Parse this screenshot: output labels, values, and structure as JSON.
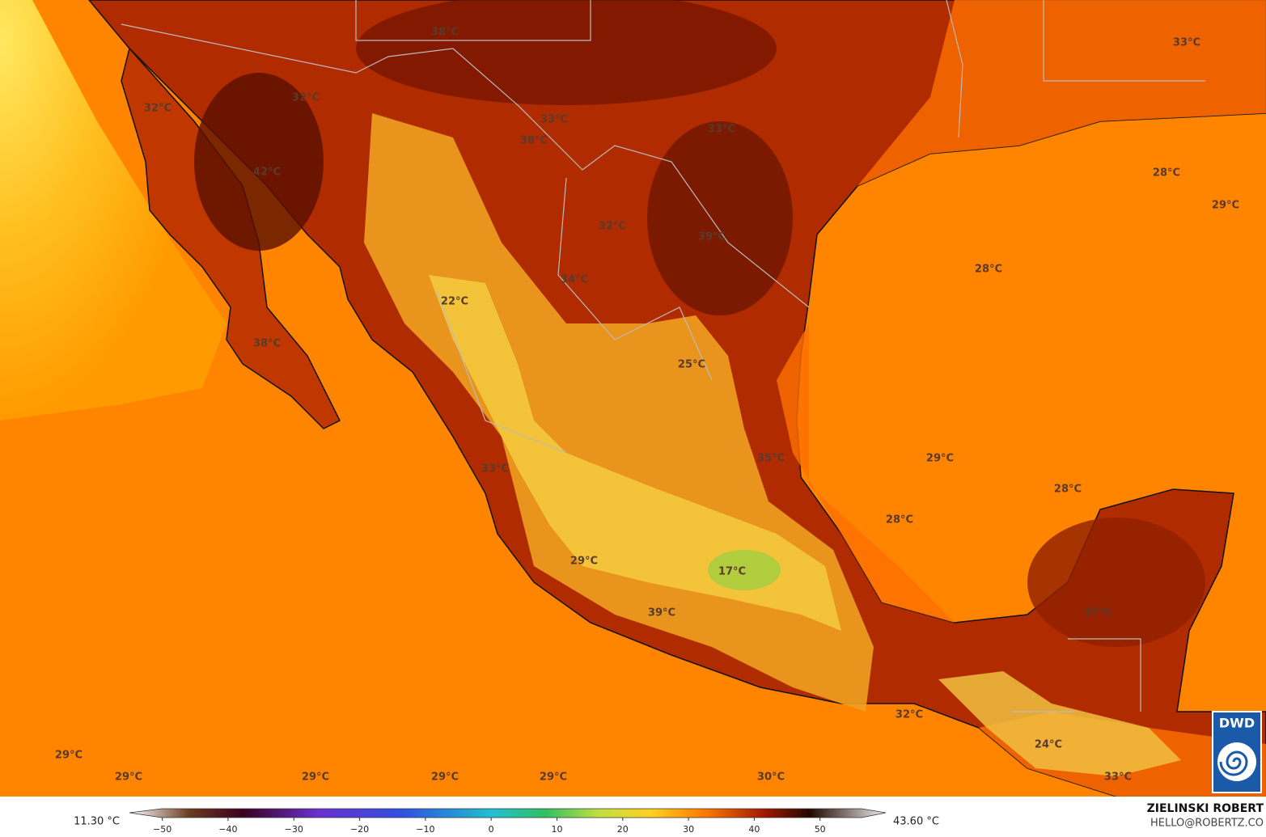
{
  "map": {
    "labels": [
      "38°C",
      "33°C",
      "32°C",
      "32°C",
      "33°C",
      "33°C",
      "38°C",
      "42°C",
      "28°C",
      "29°C",
      "32°C",
      "39°C",
      "28°C",
      "34°C",
      "22°C",
      "38°C",
      "25°C",
      "35°C",
      "29°C",
      "33°C",
      "28°C",
      "28°C",
      "29°C",
      "17°C",
      "37°C",
      "39°C",
      "32°C",
      "24°C",
      "29°C",
      "29°C",
      "29°C",
      "29°C",
      "29°C",
      "30°C",
      "33°C"
    ]
  },
  "colorbar": {
    "min_label": "11.30 °C",
    "max_label": "43.60 °C",
    "range": [
      -55,
      60
    ],
    "ticks": [
      {
        "value": -50,
        "label": "−50"
      },
      {
        "value": -40,
        "label": "−40"
      },
      {
        "value": -30,
        "label": "−30"
      },
      {
        "value": -20,
        "label": "−20"
      },
      {
        "value": -10,
        "label": "−10"
      },
      0,
      10,
      20,
      30,
      40,
      50
    ]
  },
  "credits": {
    "author": "ZIELINSKI ROBERT",
    "contact": "HELLO@ROBERTZ.CO",
    "logo": "DWD"
  }
}
